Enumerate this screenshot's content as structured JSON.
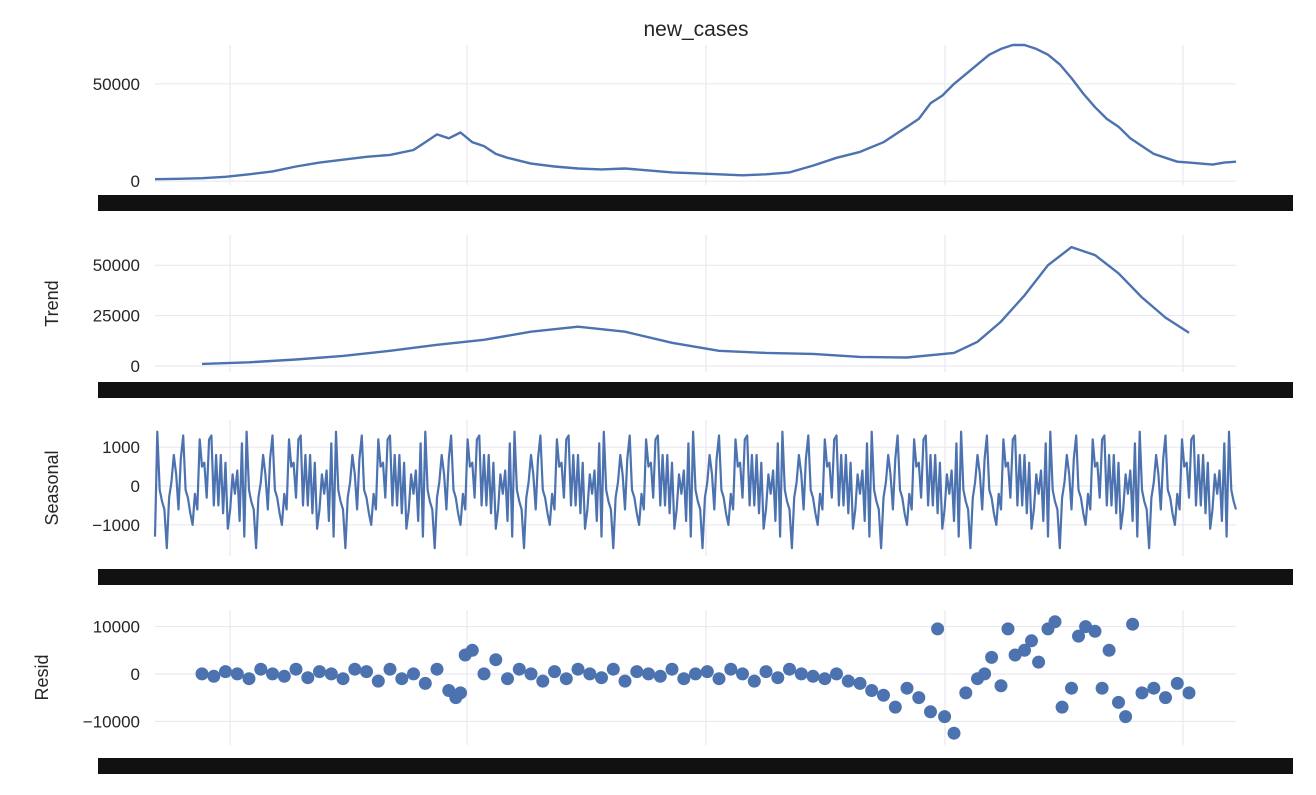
{
  "figure_title": "new_cases",
  "colors": {
    "line": "#4c72b0",
    "marker": "#4c72b0",
    "grid": "#e6e6ee",
    "band": "#111111"
  },
  "chart_data": [
    {
      "type": "line",
      "title": "new_cases",
      "ylabel": "",
      "ylim": [
        -2000,
        70000
      ],
      "yticks": [
        0,
        50000
      ],
      "grid": true,
      "x_ticks_overlapping": true,
      "series": [
        {
          "x": [
            0,
            10,
            20,
            30,
            40,
            50,
            60,
            70,
            80,
            90,
            100,
            110,
            115,
            120,
            125,
            130,
            135,
            140,
            145,
            150,
            155,
            160,
            170,
            180,
            190,
            200,
            210,
            220,
            230,
            240,
            250,
            260,
            270,
            280,
            290,
            300,
            310,
            320,
            325,
            330,
            335,
            340,
            345,
            350,
            355,
            360,
            365,
            370,
            375,
            380,
            385,
            390,
            395,
            400,
            405,
            410,
            415,
            420,
            425,
            430,
            435,
            440,
            445,
            450,
            455,
            460
          ],
          "values": [
            1000,
            1200,
            1500,
            2200,
            3500,
            5000,
            7500,
            9500,
            11000,
            12500,
            13500,
            16000,
            20000,
            24000,
            22000,
            25000,
            20000,
            18000,
            14000,
            12000,
            10500,
            9000,
            7500,
            6500,
            6000,
            6500,
            5500,
            4500,
            4000,
            3500,
            3000,
            3500,
            4500,
            8000,
            12000,
            15000,
            20000,
            28000,
            32000,
            40000,
            44000,
            50000,
            55000,
            60000,
            65000,
            68000,
            70000,
            70000,
            68000,
            65000,
            60000,
            53000,
            45000,
            38000,
            32000,
            28000,
            22000,
            18000,
            14000,
            12000,
            10000,
            9500,
            9000,
            8500,
            9500,
            10000
          ]
        }
      ]
    },
    {
      "type": "line",
      "title": "",
      "ylabel": "Trend",
      "ylim": [
        -3000,
        65000
      ],
      "yticks": [
        0,
        25000,
        50000
      ],
      "grid": true,
      "x_ticks_overlapping": true,
      "series": [
        {
          "x": [
            20,
            40,
            60,
            80,
            100,
            120,
            140,
            160,
            180,
            200,
            220,
            240,
            260,
            280,
            300,
            320,
            340,
            350,
            360,
            370,
            380,
            390,
            400,
            410,
            420,
            430,
            440
          ],
          "values": [
            1000,
            1800,
            3200,
            5000,
            7500,
            10500,
            13000,
            17000,
            19500,
            17000,
            11500,
            7500,
            6500,
            6000,
            4500,
            4200,
            6500,
            12000,
            22000,
            35000,
            50000,
            59000,
            55000,
            46000,
            34000,
            24000,
            16500
          ]
        }
      ]
    },
    {
      "type": "line",
      "title": "",
      "ylabel": "Seasonal",
      "ylim": [
        -1800,
        1700
      ],
      "yticks": [
        -1000,
        0,
        1000
      ],
      "grid": true,
      "x_ticks_overlapping": true,
      "period_days": 38,
      "cycles": 12.1,
      "series": [
        {
          "phase": [
            0,
            1,
            2,
            3,
            4,
            5,
            6,
            7,
            8,
            9,
            10,
            11,
            12,
            13,
            14,
            15,
            16,
            17,
            18,
            19,
            20,
            21,
            22,
            23,
            24,
            25,
            26,
            27,
            28,
            29,
            30,
            31,
            32,
            33,
            34,
            35,
            36,
            37
          ],
          "values": [
            -1300,
            1400,
            -100,
            -400,
            -600,
            -1600,
            -300,
            100,
            800,
            300,
            -600,
            700,
            1300,
            -100,
            -300,
            -700,
            -1000,
            -200,
            -600,
            1200,
            500,
            600,
            -300,
            1200,
            1300,
            -500,
            800,
            -500,
            800,
            -700,
            600,
            -1100,
            -600,
            300,
            -200,
            400,
            -900,
            1100
          ]
        }
      ]
    },
    {
      "type": "scatter",
      "title": "",
      "ylabel": "Resid",
      "ylim": [
        -15000,
        13500
      ],
      "yticks": [
        -10000,
        0,
        10000
      ],
      "grid": true,
      "x_ticks_overlapping": true,
      "series": [
        {
          "x": [
            20,
            25,
            30,
            35,
            40,
            45,
            50,
            55,
            60,
            65,
            70,
            75,
            80,
            85,
            90,
            95,
            100,
            105,
            110,
            115,
            120,
            125,
            128,
            130,
            132,
            135,
            140,
            145,
            150,
            155,
            160,
            165,
            170,
            175,
            180,
            185,
            190,
            195,
            200,
            205,
            210,
            215,
            220,
            225,
            230,
            235,
            240,
            245,
            250,
            255,
            260,
            265,
            270,
            275,
            280,
            285,
            290,
            295,
            300,
            305,
            310,
            315,
            320,
            325,
            330,
            333,
            336,
            340,
            345,
            350,
            353,
            356,
            360,
            363,
            366,
            370,
            373,
            376,
            380,
            383,
            386,
            390,
            393,
            396,
            400,
            403,
            406,
            410,
            413,
            416,
            420,
            425,
            430,
            435,
            440
          ],
          "values": [
            0,
            -500,
            500,
            0,
            -1000,
            1000,
            0,
            -500,
            1000,
            -800,
            500,
            0,
            -1000,
            1000,
            500,
            -1500,
            1000,
            -1000,
            0,
            -2000,
            1000,
            -3500,
            -5000,
            -4000,
            4000,
            5000,
            0,
            3000,
            -1000,
            1000,
            0,
            -1500,
            500,
            -1000,
            1000,
            0,
            -800,
            1000,
            -1500,
            500,
            0,
            -500,
            1000,
            -1000,
            0,
            500,
            -1000,
            1000,
            0,
            -1500,
            500,
            -800,
            1000,
            0,
            -500,
            -1000,
            0,
            -1500,
            -2000,
            -3500,
            -4500,
            -7000,
            -3000,
            -5000,
            -8000,
            9500,
            -9000,
            -12500,
            -4000,
            -1000,
            0,
            3500,
            -2500,
            9500,
            4000,
            5000,
            7000,
            2500,
            9500,
            11000,
            -7000,
            -3000,
            8000,
            10000,
            9000,
            -3000,
            5000,
            -6000,
            -9000,
            10500,
            -4000,
            -3000,
            -5000,
            -2000,
            -4000
          ]
        }
      ]
    }
  ]
}
